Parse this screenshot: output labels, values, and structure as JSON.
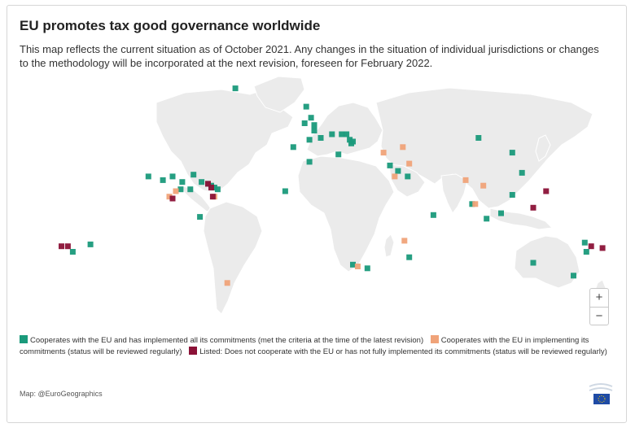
{
  "header": {
    "title": "EU promotes tax good governance worldwide",
    "subtitle": "This map reflects the current situation as of October 2021. Any changes in the situation of individual jurisdictions or changes to the methodology will be incorporated at the next revision, foreseen for February 2022."
  },
  "colors": {
    "cooperates": "#1a9a7b",
    "in_progress": "#f0a379",
    "listed": "#8b1237",
    "land": "#ebebeb"
  },
  "map": {
    "projection": "equirectangular",
    "markers": [
      {
        "lon": -51,
        "lat": 72,
        "status": "cooperates"
      },
      {
        "lon": -7,
        "lat": 62,
        "status": "cooperates"
      },
      {
        "lon": -4,
        "lat": 56,
        "status": "cooperates"
      },
      {
        "lon": -2,
        "lat": 52,
        "status": "cooperates"
      },
      {
        "lon": -8,
        "lat": 53,
        "status": "cooperates"
      },
      {
        "lon": -2,
        "lat": 49,
        "status": "cooperates"
      },
      {
        "lon": 9,
        "lat": 47,
        "status": "cooperates"
      },
      {
        "lon": 15,
        "lat": 47,
        "status": "cooperates"
      },
      {
        "lon": 18,
        "lat": 47,
        "status": "cooperates"
      },
      {
        "lon": 20,
        "lat": 44,
        "status": "cooperates"
      },
      {
        "lon": 21,
        "lat": 42,
        "status": "cooperates"
      },
      {
        "lon": 22,
        "lat": 43,
        "status": "cooperates"
      },
      {
        "lon": 2,
        "lat": 45,
        "status": "cooperates"
      },
      {
        "lon": -5,
        "lat": 44,
        "status": "cooperates"
      },
      {
        "lon": -15,
        "lat": 40,
        "status": "cooperates"
      },
      {
        "lon": 13,
        "lat": 36,
        "status": "cooperates"
      },
      {
        "lon": -5,
        "lat": 32,
        "status": "cooperates"
      },
      {
        "lon": 45,
        "lat": 30,
        "status": "cooperates"
      },
      {
        "lon": 50,
        "lat": 27,
        "status": "cooperates"
      },
      {
        "lon": 56,
        "lat": 24,
        "status": "cooperates"
      },
      {
        "lon": -20,
        "lat": 16,
        "status": "cooperates"
      },
      {
        "lon": 57,
        "lat": -20,
        "status": "cooperates"
      },
      {
        "lon": 22,
        "lat": -24,
        "status": "cooperates"
      },
      {
        "lon": 31,
        "lat": -26,
        "status": "cooperates"
      },
      {
        "lon": 96,
        "lat": 9,
        "status": "cooperates"
      },
      {
        "lon": 105,
        "lat": 1,
        "status": "cooperates"
      },
      {
        "lon": 121,
        "lat": 37,
        "status": "cooperates"
      },
      {
        "lon": 127,
        "lat": 26,
        "status": "cooperates"
      },
      {
        "lon": 121,
        "lat": 14,
        "status": "cooperates"
      },
      {
        "lon": 114,
        "lat": 4,
        "status": "cooperates"
      },
      {
        "lon": 72,
        "lat": 3,
        "status": "cooperates"
      },
      {
        "lon": 100,
        "lat": 45,
        "status": "cooperates"
      },
      {
        "lon": 134,
        "lat": -23,
        "status": "cooperates"
      },
      {
        "lon": 166,
        "lat": -12,
        "status": "cooperates"
      },
      {
        "lon": 167,
        "lat": -17,
        "status": "cooperates"
      },
      {
        "lon": 159,
        "lat": -30,
        "status": "cooperates"
      },
      {
        "lon": -105,
        "lat": 24,
        "status": "cooperates"
      },
      {
        "lon": -96,
        "lat": 22,
        "status": "cooperates"
      },
      {
        "lon": -90,
        "lat": 24,
        "status": "cooperates"
      },
      {
        "lon": -84,
        "lat": 21,
        "status": "cooperates"
      },
      {
        "lon": -77,
        "lat": 25,
        "status": "cooperates"
      },
      {
        "lon": -72,
        "lat": 21,
        "status": "cooperates"
      },
      {
        "lon": -68,
        "lat": 20,
        "status": "cooperates"
      },
      {
        "lon": -66,
        "lat": 19,
        "status": "cooperates"
      },
      {
        "lon": -64,
        "lat": 18,
        "status": "cooperates"
      },
      {
        "lon": -62,
        "lat": 17,
        "status": "cooperates"
      },
      {
        "lon": -79,
        "lat": 17,
        "status": "cooperates"
      },
      {
        "lon": -85,
        "lat": 17,
        "status": "cooperates"
      },
      {
        "lon": -73,
        "lat": 2,
        "status": "cooperates"
      },
      {
        "lon": -141,
        "lat": -13,
        "status": "cooperates"
      },
      {
        "lon": -152,
        "lat": -17,
        "status": "cooperates"
      },
      {
        "lon": 92,
        "lat": 22,
        "status": "in_progress"
      },
      {
        "lon": 98,
        "lat": 9,
        "status": "in_progress"
      },
      {
        "lon": 103,
        "lat": 19,
        "status": "in_progress"
      },
      {
        "lon": 53,
        "lat": 40,
        "status": "in_progress"
      },
      {
        "lon": 57,
        "lat": 31,
        "status": "in_progress"
      },
      {
        "lon": 41,
        "lat": 37,
        "status": "in_progress"
      },
      {
        "lon": 48,
        "lat": 24,
        "status": "in_progress"
      },
      {
        "lon": 54,
        "lat": -11,
        "status": "in_progress"
      },
      {
        "lon": 25,
        "lat": -25,
        "status": "in_progress"
      },
      {
        "lon": -56,
        "lat": -34,
        "status": "in_progress"
      },
      {
        "lon": -88,
        "lat": 16,
        "status": "in_progress"
      },
      {
        "lon": -92,
        "lat": 13,
        "status": "in_progress"
      },
      {
        "lon": -64,
        "lat": 13,
        "status": "in_progress"
      },
      {
        "lon": -155,
        "lat": -14,
        "status": "listed"
      },
      {
        "lon": -159,
        "lat": -14,
        "status": "listed"
      },
      {
        "lon": -65,
        "lat": 13,
        "status": "listed"
      },
      {
        "lon": -90,
        "lat": 12,
        "status": "listed"
      },
      {
        "lon": 142,
        "lat": 16,
        "status": "listed"
      },
      {
        "lon": 134,
        "lat": 7,
        "status": "listed"
      },
      {
        "lon": 170,
        "lat": -14,
        "status": "listed"
      },
      {
        "lon": 177,
        "lat": -15,
        "status": "listed"
      },
      {
        "lon": -66,
        "lat": 18,
        "status": "listed"
      },
      {
        "lon": -68,
        "lat": 20,
        "status": "listed"
      }
    ]
  },
  "controls": {
    "zoom_in": "+",
    "zoom_out": "−"
  },
  "legend": {
    "cooperates": "Cooperates with the EU and has implemented all its commitments (met the criteria at the time of the latest revision)",
    "in_progress": "Cooperates with the EU in implementing its commitments (status will be reviewed regularly)",
    "listed": "Listed: Does not cooperate with the EU or has not fully implemented its commitments (status will be reviewed regularly)"
  },
  "credit": "Map: @EuroGeographics"
}
